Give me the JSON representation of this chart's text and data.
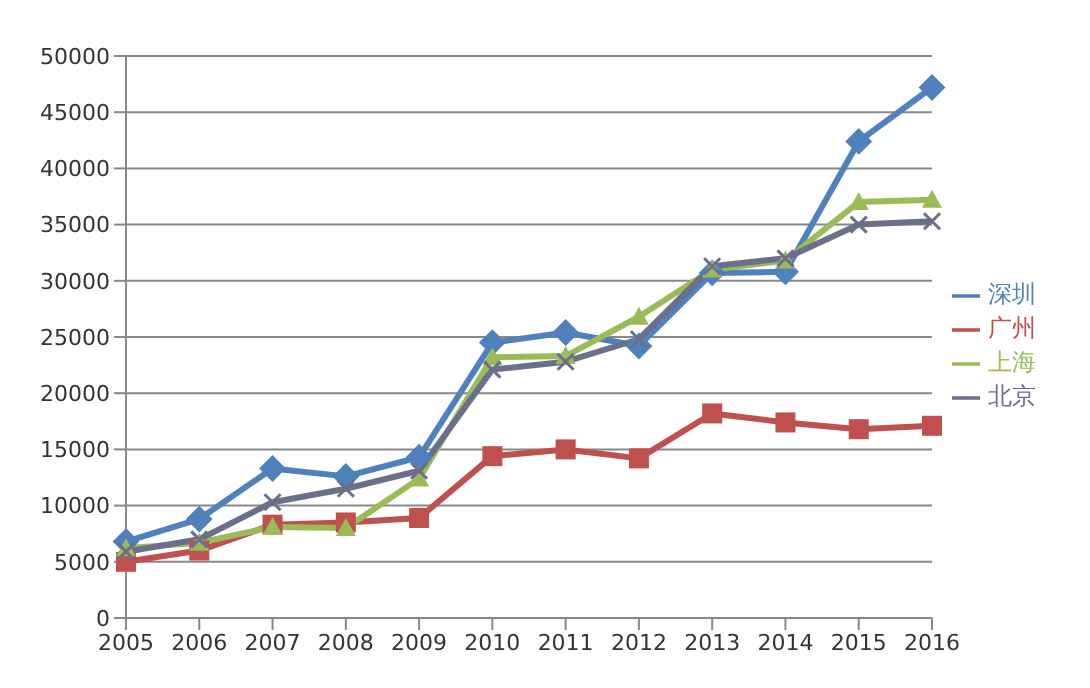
{
  "chart_data": {
    "type": "line",
    "categories": [
      "2005",
      "2006",
      "2007",
      "2008",
      "2009",
      "2010",
      "2011",
      "2012",
      "2013",
      "2014",
      "2015",
      "2016"
    ],
    "ylim": [
      0,
      50000
    ],
    "yticks": [
      0,
      5000,
      10000,
      15000,
      20000,
      25000,
      30000,
      35000,
      40000,
      45000,
      50000
    ],
    "grid": "y",
    "legend": "right",
    "series": [
      {
        "name": "深圳",
        "color": "#4f81bd",
        "marker": "diamond",
        "values": [
          6800,
          8800,
          13300,
          12600,
          14300,
          24500,
          25400,
          24200,
          30700,
          30800,
          42400,
          47200
        ]
      },
      {
        "name": "广州",
        "color": "#c0504d",
        "marker": "square",
        "values": [
          5000,
          6000,
          8300,
          8500,
          8900,
          14400,
          15000,
          14200,
          18200,
          17400,
          16800,
          17100
        ]
      },
      {
        "name": "上海",
        "color": "#9bbb59",
        "marker": "triangle",
        "values": [
          6200,
          6700,
          8100,
          8000,
          12400,
          23200,
          23300,
          26800,
          31000,
          31800,
          37000,
          37200
        ]
      },
      {
        "name": "北京",
        "color": "#6b6f8a",
        "marker": "cross",
        "values": [
          5900,
          7000,
          10300,
          11500,
          13100,
          22100,
          22800,
          24800,
          31300,
          32000,
          35000,
          35300
        ]
      }
    ]
  }
}
